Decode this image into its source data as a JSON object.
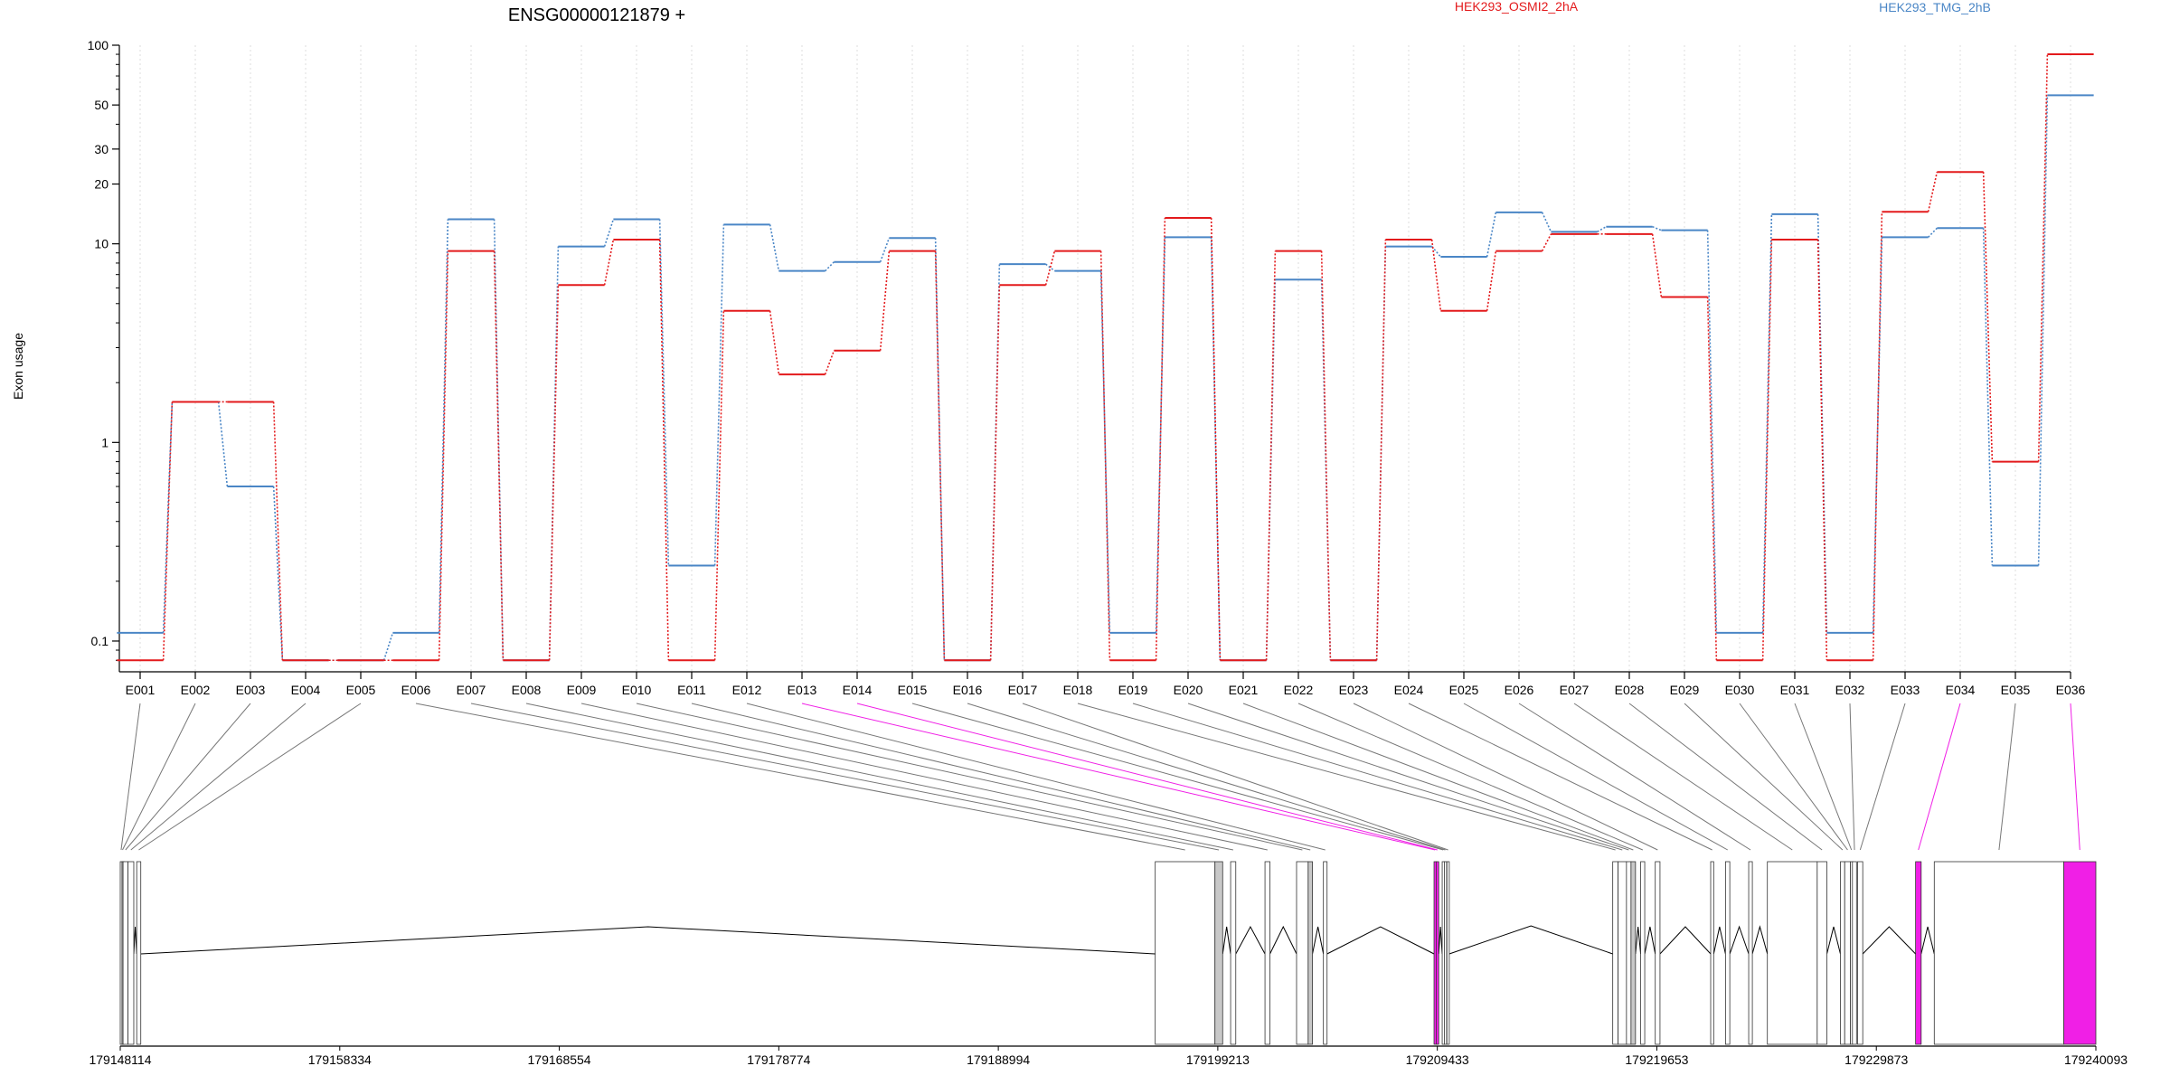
{
  "chart_data": {
    "type": "line",
    "title": "ENSG00000121879 +",
    "ylabel": "Exon usage",
    "yscale": "log",
    "ylim": [
      0.07,
      100
    ],
    "yticks": [
      "0.1",
      "1",
      "10",
      "20",
      "30",
      "50",
      "100"
    ],
    "grid": "vertical dotted lines at each exon",
    "legend": "top-right",
    "categories": [
      "E001",
      "E002",
      "E003",
      "E004",
      "E005",
      "E006",
      "E007",
      "E008",
      "E009",
      "E010",
      "E011",
      "E012",
      "E013",
      "E014",
      "E015",
      "E016",
      "E017",
      "E018",
      "E019",
      "E020",
      "E021",
      "E022",
      "E023",
      "E024",
      "E025",
      "E026",
      "E027",
      "E028",
      "E029",
      "E030",
      "E031",
      "E032",
      "E033",
      "E034",
      "E035",
      "E036"
    ],
    "series": [
      {
        "name": "HEK293_OSMI2_2hA",
        "color": "#e31a1c",
        "values": [
          0.08,
          1.6,
          1.6,
          0.08,
          0.08,
          0.08,
          9.2,
          0.08,
          6.2,
          10.5,
          0.08,
          4.6,
          2.2,
          2.9,
          9.2,
          0.08,
          6.2,
          9.2,
          0.08,
          13.5,
          0.08,
          9.2,
          0.08,
          10.5,
          4.6,
          9.2,
          11.2,
          11.2,
          5.4,
          0.08,
          10.5,
          0.08,
          14.5,
          23,
          0.8,
          90
        ]
      },
      {
        "name": "HEK293_TMG_2hB",
        "color": "#4a86c6",
        "values": [
          0.11,
          1.6,
          0.6,
          0.08,
          0.08,
          0.11,
          13.3,
          0.08,
          9.7,
          13.3,
          0.24,
          12.5,
          7.3,
          8.1,
          10.7,
          0.08,
          7.9,
          7.3,
          0.11,
          10.8,
          0.08,
          6.6,
          0.08,
          9.7,
          8.6,
          14.4,
          11.5,
          12.2,
          11.7,
          0.11,
          14.1,
          0.11,
          10.8,
          12.0,
          0.24,
          56
        ]
      }
    ],
    "gene_model": {
      "coordinates": [
        "179148114",
        "179158334",
        "179168554",
        "179178774",
        "179188994",
        "179199213",
        "179209433",
        "179219653",
        "179229873",
        "179240093"
      ],
      "exon_color": "#f01fe6",
      "highlighted_exons": [
        "E013",
        "E014",
        "E034",
        "E036"
      ],
      "intervals": [
        [
          179148114,
          179148194
        ],
        [
          179148194,
          179148244
        ],
        [
          179148244,
          179148474
        ],
        [
          179148474,
          179148744
        ],
        [
          179148880,
          179149070
        ],
        [
          179196300,
          179199080
        ],
        [
          179199080,
          179199440
        ],
        [
          179199810,
          179200050
        ],
        [
          179201410,
          179201640
        ],
        [
          179202880,
          179203420
        ],
        [
          179203420,
          179203620
        ],
        [
          179204130,
          179204300
        ],
        [
          179209280,
          179209380
        ],
        [
          179209380,
          179209500
        ],
        [
          179209660,
          179209760
        ],
        [
          179209760,
          179209850
        ],
        [
          179209880,
          179209990
        ],
        [
          179217600,
          179217850
        ],
        [
          179217850,
          179218240
        ],
        [
          179218240,
          179218450
        ],
        [
          179218450,
          179218660
        ],
        [
          179218900,
          179219090
        ],
        [
          179219580,
          179219800
        ],
        [
          179222160,
          179222300
        ],
        [
          179222850,
          179223050
        ],
        [
          179223930,
          179224100
        ],
        [
          179224800,
          179227120
        ],
        [
          179227120,
          179227570
        ],
        [
          179228200,
          179228400
        ],
        [
          179228400,
          179228670
        ],
        [
          179228670,
          179228760
        ],
        [
          179228760,
          179228950
        ],
        [
          179229000,
          179229240
        ],
        [
          179231700,
          179231960
        ],
        [
          179232570,
          179238600
        ],
        [
          179238600,
          179240093
        ]
      ]
    }
  }
}
